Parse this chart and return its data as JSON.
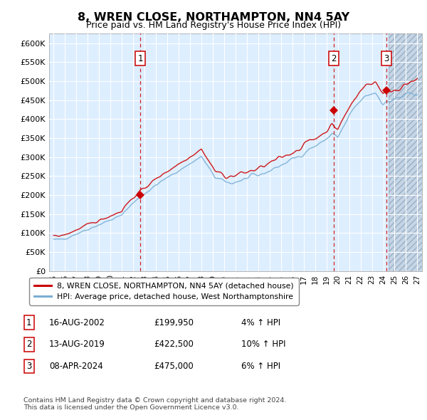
{
  "title": "8, WREN CLOSE, NORTHAMPTON, NN4 5AY",
  "subtitle": "Price paid vs. HM Land Registry's House Price Index (HPI)",
  "ylabel_ticks": [
    "£0",
    "£50K",
    "£100K",
    "£150K",
    "£200K",
    "£250K",
    "£300K",
    "£350K",
    "£400K",
    "£450K",
    "£500K",
    "£550K",
    "£600K"
  ],
  "ytick_vals": [
    0,
    50000,
    100000,
    150000,
    200000,
    250000,
    300000,
    350000,
    400000,
    450000,
    500000,
    550000,
    600000
  ],
  "ylim": [
    0,
    625000
  ],
  "xlim_start": 1994.6,
  "xlim_end": 2027.4,
  "xtick_years": [
    1995,
    1996,
    1997,
    1998,
    1999,
    2000,
    2001,
    2002,
    2003,
    2004,
    2005,
    2006,
    2007,
    2008,
    2009,
    2010,
    2011,
    2012,
    2013,
    2014,
    2015,
    2016,
    2017,
    2018,
    2019,
    2020,
    2021,
    2022,
    2023,
    2024,
    2025,
    2026,
    2027
  ],
  "sale1_x": 2002.62,
  "sale1_y": 199950,
  "sale1_label": "1",
  "sale2_x": 2019.62,
  "sale2_y": 422500,
  "sale2_label": "2",
  "sale3_x": 2024.28,
  "sale3_y": 475000,
  "sale3_label": "3",
  "future_start": 2024.5,
  "line_color_red": "#cc0000",
  "line_color_blue": "#7aafd4",
  "bg_color": "#ddeeff",
  "grid_color": "#ffffff",
  "legend_line1": "8, WREN CLOSE, NORTHAMPTON, NN4 5AY (detached house)",
  "legend_line2": "HPI: Average price, detached house, West Northamptonshire",
  "table_rows": [
    {
      "num": "1",
      "date": "16-AUG-2002",
      "price": "£199,950",
      "hpi": "4% ↑ HPI"
    },
    {
      "num": "2",
      "date": "13-AUG-2019",
      "price": "£422,500",
      "hpi": "10% ↑ HPI"
    },
    {
      "num": "3",
      "date": "08-APR-2024",
      "price": "£475,000",
      "hpi": "6% ↑ HPI"
    }
  ],
  "footnote": "Contains HM Land Registry data © Crown copyright and database right 2024.\nThis data is licensed under the Open Government Licence v3.0."
}
